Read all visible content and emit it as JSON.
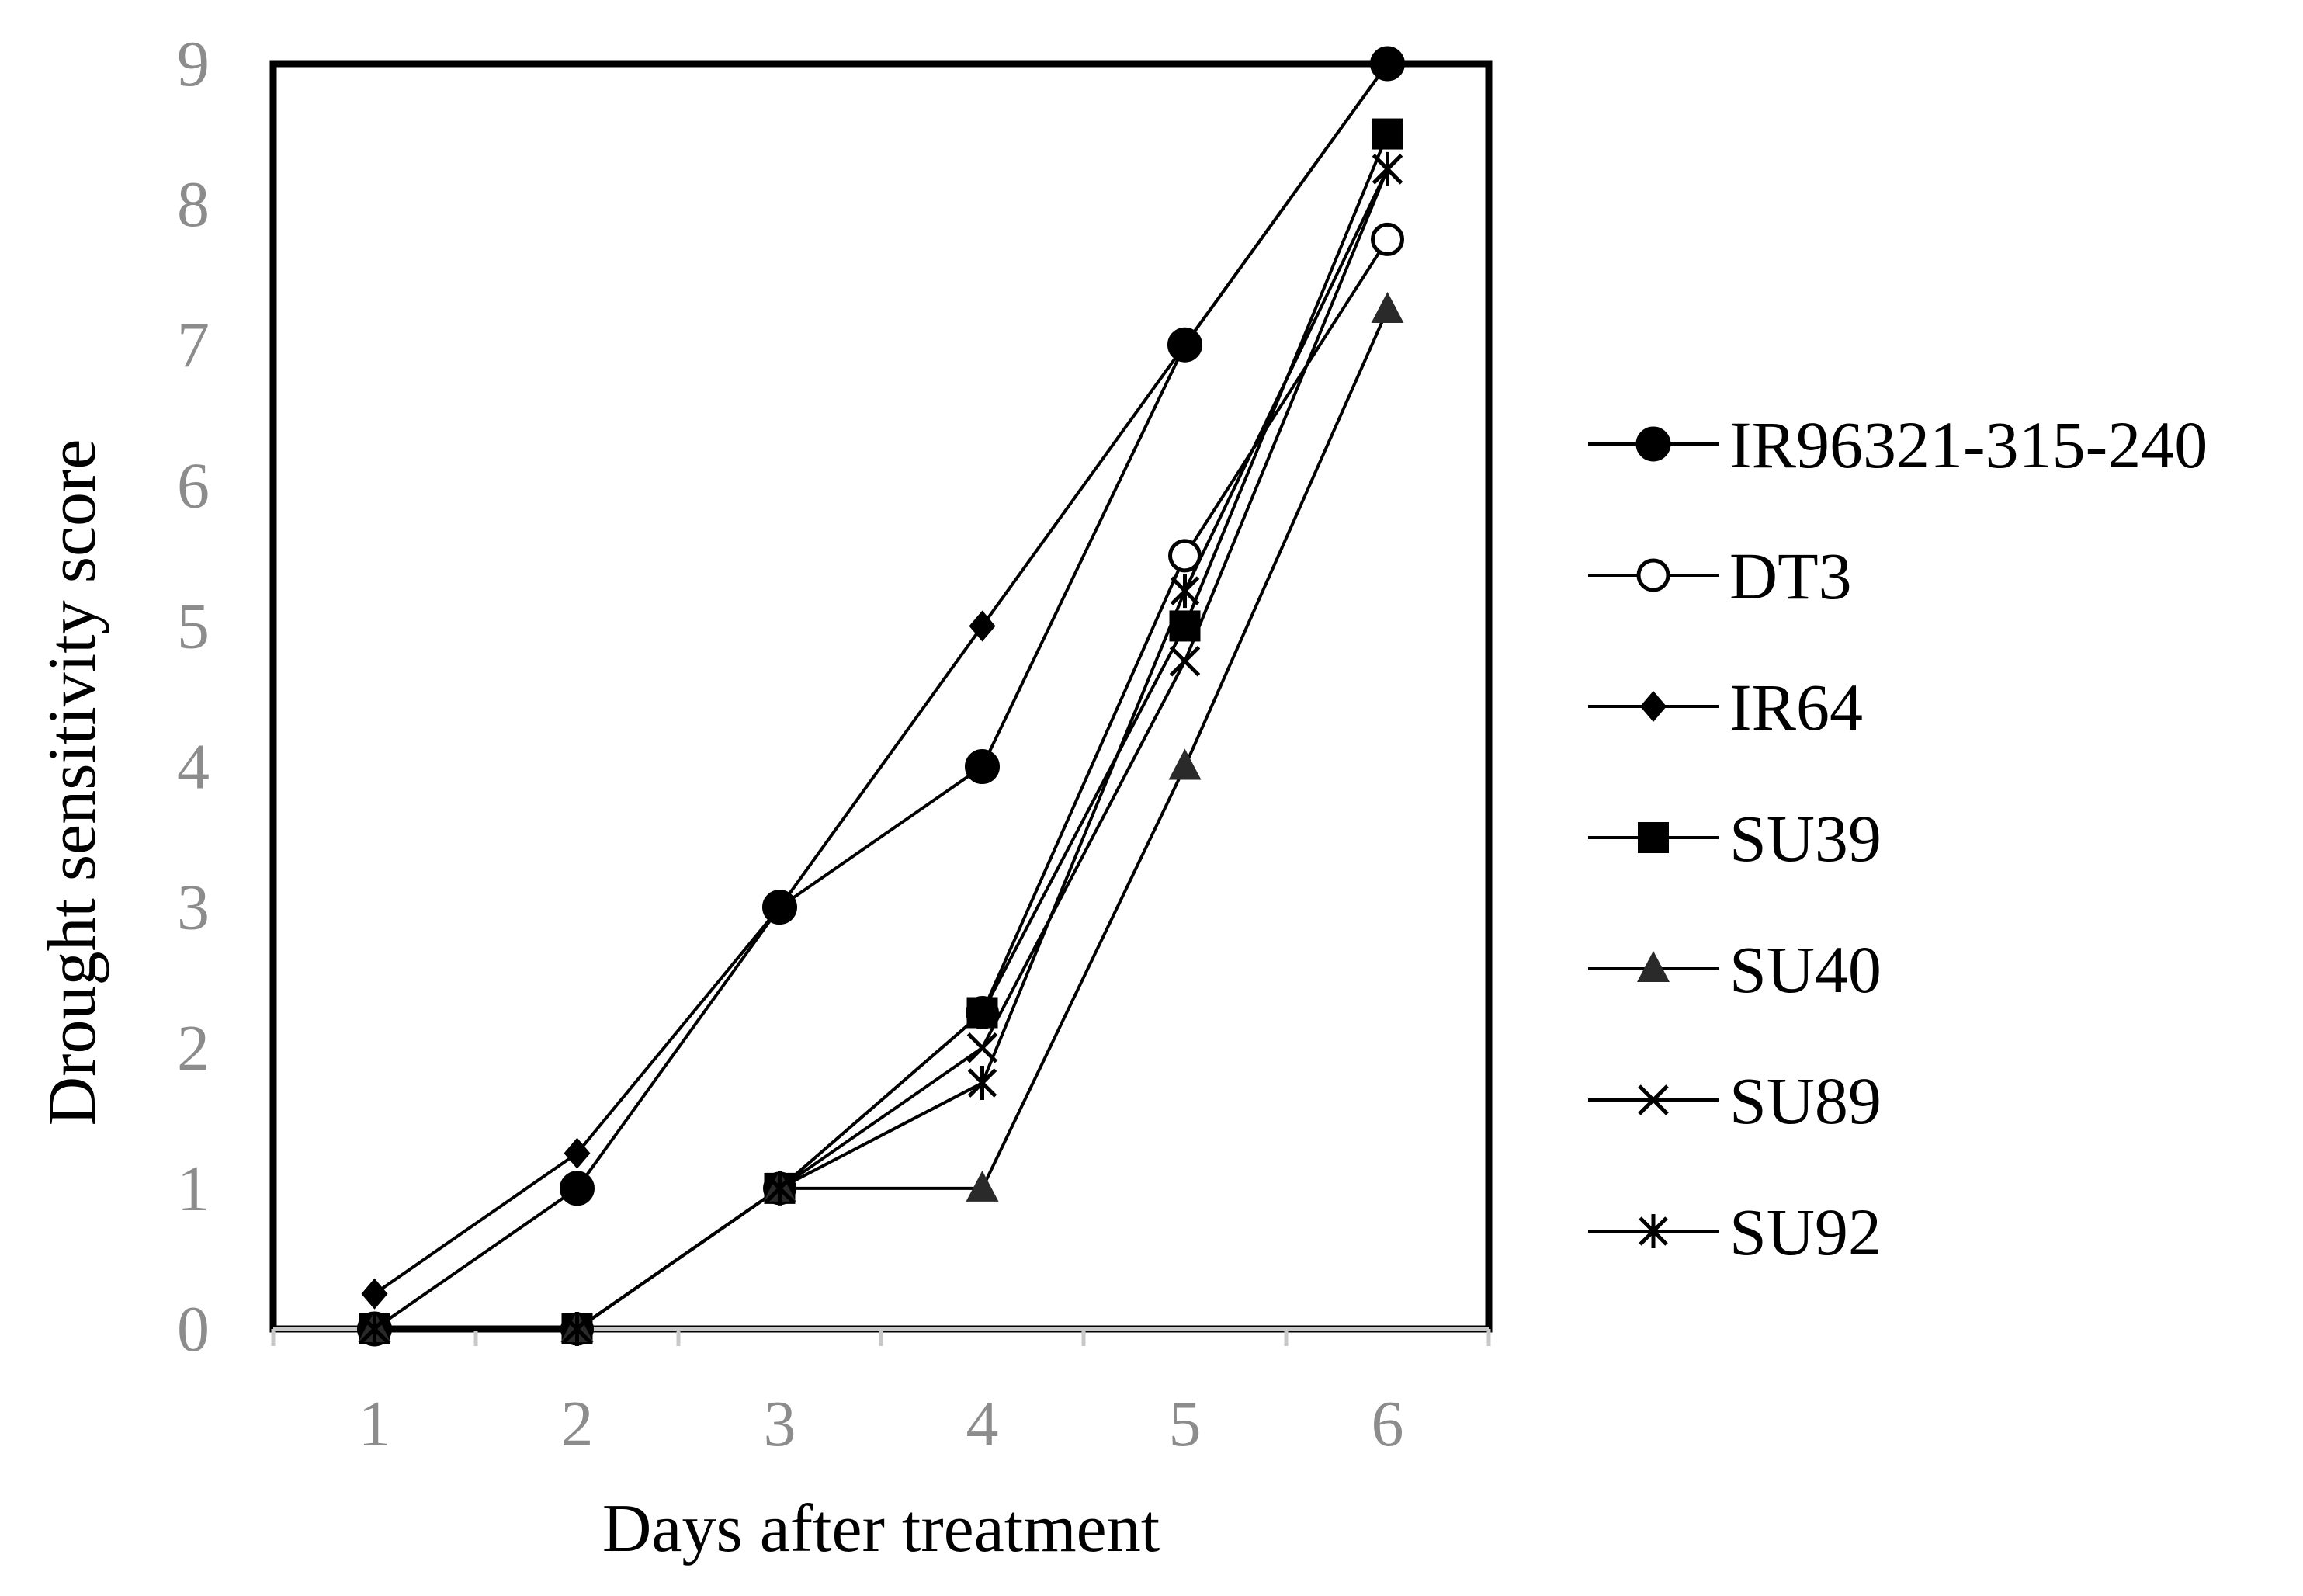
{
  "chart_data": {
    "type": "line",
    "title": "",
    "xlabel": "Days after treatment",
    "ylabel": "Drought sensitivity score",
    "x": [
      1,
      2,
      3,
      4,
      5,
      6
    ],
    "x_tick_labels": [
      "1",
      "2",
      "3",
      "4",
      "5",
      "6"
    ],
    "y_tick_labels": [
      "0",
      "1",
      "2",
      "3",
      "4",
      "5",
      "6",
      "7",
      "8",
      "9"
    ],
    "xlim": [
      0.5,
      6.5
    ],
    "ylim": [
      0,
      9
    ],
    "grid": false,
    "legend_position": "right",
    "series": [
      {
        "name": "IR96321-315-240",
        "marker": "filled-circle",
        "values": [
          0,
          1,
          3,
          4,
          7,
          9
        ]
      },
      {
        "name": "DT3",
        "marker": "open-circle",
        "values": [
          0,
          0,
          1,
          2.25,
          5.5,
          7.75
        ]
      },
      {
        "name": "IR64",
        "marker": "filled-diamond",
        "values": [
          0.25,
          1.25,
          3,
          5,
          7,
          9
        ]
      },
      {
        "name": "SU39",
        "marker": "filled-square",
        "values": [
          0,
          0,
          1,
          2.25,
          5,
          8.5
        ]
      },
      {
        "name": "SU40",
        "marker": "filled-triangle",
        "values": [
          0,
          0,
          1,
          1,
          4,
          7.25
        ]
      },
      {
        "name": "SU89",
        "marker": "x-cross",
        "values": [
          0,
          0,
          1,
          2,
          4.75,
          8.25
        ]
      },
      {
        "name": "SU92",
        "marker": "asterisk",
        "values": [
          0,
          0,
          1,
          1.75,
          5.25,
          8.25
        ]
      }
    ]
  },
  "colors": {
    "line": "#000000",
    "tick_text": "#8c8c8c",
    "axis_baseline": "#c8c8c8",
    "marker_fill": "#000000",
    "triangle_fill": "#2a2a2a"
  }
}
